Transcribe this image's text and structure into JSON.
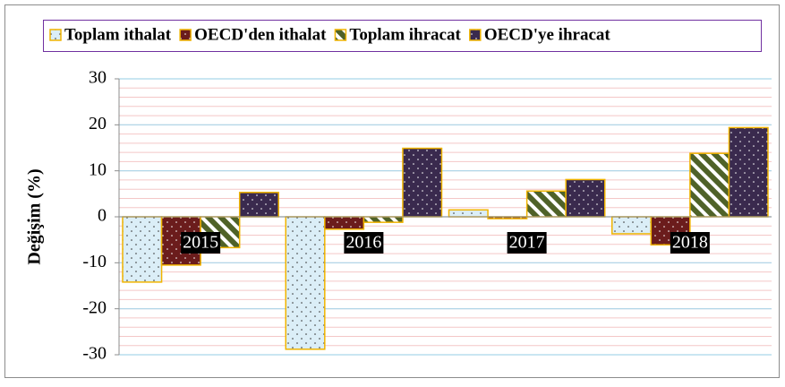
{
  "chart_data": {
    "type": "bar",
    "ylabel": "Değişim (%)",
    "categories": [
      "2015",
      "2016",
      "2017",
      "2018"
    ],
    "series": [
      {
        "name": "Toplam ithalat",
        "color": "#dbeef7",
        "pattern": "dots",
        "values": [
          -14.2,
          -28.8,
          1.5,
          -3.7
        ]
      },
      {
        "name": "OECD'den ithalat",
        "color": "#6b1c1c",
        "pattern": "dots",
        "values": [
          -10.5,
          -2.7,
          -0.4,
          -6.1
        ]
      },
      {
        "name": "Toplam ihracat",
        "color": "#4f6228",
        "pattern": "stripes",
        "values": [
          -6.7,
          -1.2,
          5.6,
          13.8
        ]
      },
      {
        "name": "OECD'ye ihracat",
        "color": "#3a2a4e",
        "pattern": "dots",
        "values": [
          5.3,
          14.9,
          8.1,
          19.4
        ]
      }
    ],
    "bar_edge_color": "#f0b400",
    "ylim": [
      -30,
      30
    ],
    "yticks": [
      -30,
      -20,
      -10,
      0,
      10,
      20,
      30
    ],
    "grid": true
  }
}
